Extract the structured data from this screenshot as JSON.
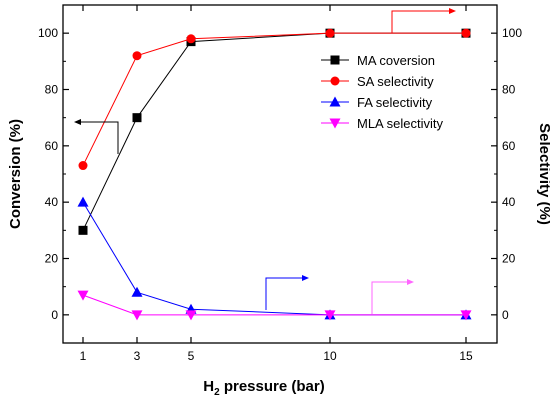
{
  "chart_data": {
    "type": "line",
    "x": [
      1,
      3,
      5,
      10,
      15
    ],
    "x_tick_labels": [
      "1",
      "3",
      "5",
      "10",
      "15"
    ],
    "x_scale": "categorical-positions",
    "xlabel_main": "H",
    "xlabel_sub": "2",
    "xlabel_rest": " pressure (bar)",
    "ylabel_left": "Conversion (%)",
    "ylabel_right": "Selectivity (%)",
    "ylim": [
      -10,
      110
    ],
    "y_ticks": [
      0,
      20,
      40,
      60,
      80,
      100
    ],
    "y_tick_labels": [
      "0",
      "20",
      "40",
      "60",
      "80",
      "100"
    ],
    "legend_position": "upper-right inside plot",
    "series": [
      {
        "name": "MA coversion",
        "axis": "left",
        "marker": "square",
        "color": "#000000",
        "values": [
          30,
          70,
          97,
          100,
          100
        ]
      },
      {
        "name": "SA selectivity",
        "axis": "right",
        "marker": "circle",
        "color": "#ff0000",
        "values": [
          53,
          92,
          98,
          100,
          100
        ]
      },
      {
        "name": "FA selectivity",
        "axis": "right",
        "marker": "triangle-up",
        "color": "#0000ff",
        "values": [
          40,
          8,
          2,
          0,
          0
        ]
      },
      {
        "name": "MLA selectivity",
        "axis": "right",
        "marker": "triangle-down",
        "color": "#ff00ff",
        "values": [
          7,
          0,
          0,
          0,
          0
        ]
      }
    ]
  }
}
